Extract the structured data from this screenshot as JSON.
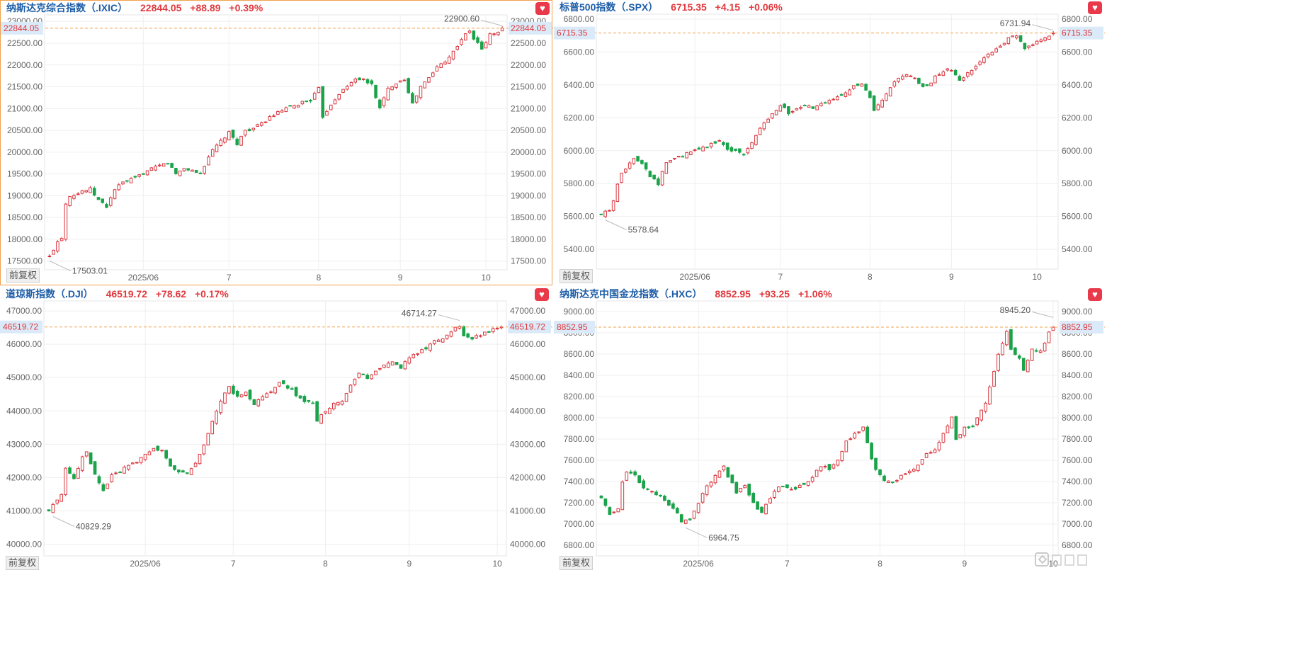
{
  "chart_data": [
    {
      "type": "candlestick",
      "title": "纳斯达克综合指数（.IXIC）",
      "last": "22844.05",
      "change": "+88.89",
      "change_pct": "+0.39%",
      "max_label": "22900.60",
      "min_label": "17503.01",
      "price_tag": "22844.05",
      "adjust_label": "前复权",
      "x_ticks": [
        "2025/06",
        "7",
        "8",
        "9",
        "10"
      ],
      "x_tick_index": [
        23,
        44,
        66,
        86,
        107
      ],
      "y_ticks": [
        "17500.00",
        "18000.00",
        "18500.00",
        "19000.00",
        "19500.00",
        "20000.00",
        "20500.00",
        "21000.00",
        "21500.00",
        "22000.00",
        "22500.00",
        "23000.00"
      ],
      "y_tick_values": [
        17500,
        18000,
        18500,
        19000,
        19500,
        20000,
        20500,
        21000,
        21500,
        22000,
        22500,
        23000
      ],
      "ylim": [
        17300,
        23150
      ],
      "max_value": 22900.6,
      "min_value": 17503.01,
      "last_value": 22844.05,
      "anchors": [
        [
          0,
          17600
        ],
        [
          2,
          17950
        ],
        [
          3,
          18050
        ],
        [
          4,
          18820
        ],
        [
          5,
          19010
        ],
        [
          7,
          19050
        ],
        [
          8,
          19110
        ],
        [
          10,
          19150
        ],
        [
          12,
          18900
        ],
        [
          14,
          18750
        ],
        [
          16,
          19150
        ],
        [
          18,
          19300
        ],
        [
          21,
          19400
        ],
        [
          23,
          19520
        ],
        [
          26,
          19650
        ],
        [
          29,
          19760
        ],
        [
          31,
          19500
        ],
        [
          33,
          19630
        ],
        [
          35,
          19580
        ],
        [
          37,
          19500
        ],
        [
          39,
          19900
        ],
        [
          41,
          20150
        ],
        [
          44,
          20440
        ],
        [
          46,
          20200
        ],
        [
          48,
          20500
        ],
        [
          50,
          20550
        ],
        [
          52,
          20650
        ],
        [
          54,
          20800
        ],
        [
          56,
          20900
        ],
        [
          58,
          21000
        ],
        [
          60,
          21050
        ],
        [
          62,
          21150
        ],
        [
          64,
          21200
        ],
        [
          66,
          21450
        ],
        [
          67,
          20820
        ],
        [
          69,
          21100
        ],
        [
          71,
          21350
        ],
        [
          73,
          21500
        ],
        [
          75,
          21700
        ],
        [
          77,
          21650
        ],
        [
          79,
          21550
        ],
        [
          81,
          21000
        ],
        [
          83,
          21450
        ],
        [
          85,
          21600
        ],
        [
          87,
          21680
        ],
        [
          89,
          21100
        ],
        [
          91,
          21500
        ],
        [
          93,
          21700
        ],
        [
          95,
          21950
        ],
        [
          97,
          22100
        ],
        [
          99,
          22300
        ],
        [
          101,
          22600
        ],
        [
          103,
          22780
        ],
        [
          104,
          22600
        ],
        [
          105,
          22500
        ],
        [
          106,
          22350
        ],
        [
          108,
          22700
        ],
        [
          110,
          22750
        ],
        [
          111,
          22844.05
        ]
      ]
    },
    {
      "type": "candlestick",
      "title": "标普500指数（.SPX）",
      "last": "6715.35",
      "change": "+4.15",
      "change_pct": "+0.06%",
      "max_label": "6731.94",
      "min_label": "5578.64",
      "price_tag": "6715.35",
      "adjust_label": "前复权",
      "x_ticks": [
        "2025/06",
        "7",
        "8",
        "9",
        "10"
      ],
      "x_tick_index": [
        23,
        44,
        66,
        86,
        107
      ],
      "y_ticks": [
        "5400.00",
        "5600.00",
        "5800.00",
        "6000.00",
        "6200.00",
        "6400.00",
        "6600.00",
        "6800.00"
      ],
      "y_tick_values": [
        5400,
        5600,
        5800,
        6000,
        6200,
        6400,
        6600,
        6800
      ],
      "ylim": [
        5280,
        6830
      ],
      "max_value": 6731.94,
      "min_value": 5578.64,
      "last_value": 6715.35,
      "anchors": [
        [
          0,
          5610
        ],
        [
          2,
          5640
        ],
        [
          3,
          5690
        ],
        [
          4,
          5800
        ],
        [
          5,
          5870
        ],
        [
          7,
          5920
        ],
        [
          8,
          5950
        ],
        [
          10,
          5930
        ],
        [
          12,
          5850
        ],
        [
          14,
          5800
        ],
        [
          16,
          5930
        ],
        [
          18,
          5950
        ],
        [
          21,
          5980
        ],
        [
          23,
          6000
        ],
        [
          26,
          6030
        ],
        [
          29,
          6060
        ],
        [
          31,
          6010
        ],
        [
          33,
          6000
        ],
        [
          35,
          5980
        ],
        [
          37,
          6050
        ],
        [
          39,
          6130
        ],
        [
          41,
          6200
        ],
        [
          44,
          6280
        ],
        [
          46,
          6230
        ],
        [
          48,
          6250
        ],
        [
          50,
          6270
        ],
        [
          52,
          6260
        ],
        [
          54,
          6280
        ],
        [
          56,
          6300
        ],
        [
          58,
          6330
        ],
        [
          60,
          6360
        ],
        [
          62,
          6390
        ],
        [
          64,
          6400
        ],
        [
          66,
          6320
        ],
        [
          67,
          6240
        ],
        [
          69,
          6300
        ],
        [
          71,
          6380
        ],
        [
          73,
          6440
        ],
        [
          75,
          6460
        ],
        [
          77,
          6440
        ],
        [
          79,
          6380
        ],
        [
          81,
          6420
        ],
        [
          83,
          6470
        ],
        [
          85,
          6500
        ],
        [
          87,
          6460
        ],
        [
          88,
          6420
        ],
        [
          90,
          6470
        ],
        [
          92,
          6520
        ],
        [
          94,
          6560
        ],
        [
          96,
          6600
        ],
        [
          98,
          6640
        ],
        [
          100,
          6680
        ],
        [
          102,
          6700
        ],
        [
          103,
          6660
        ],
        [
          104,
          6620
        ],
        [
          106,
          6640
        ],
        [
          108,
          6680
        ],
        [
          110,
          6700
        ],
        [
          111,
          6715.35
        ]
      ]
    },
    {
      "type": "candlestick",
      "title": "道琼斯指数（.DJI）",
      "last": "46519.72",
      "change": "+78.62",
      "change_pct": "+0.17%",
      "max_label": "46714.27",
      "min_label": "40829.29",
      "price_tag": "46519.72",
      "adjust_label": "前复权",
      "x_ticks": [
        "2025/06",
        "7",
        "8",
        "9",
        "10"
      ],
      "x_tick_index": [
        23,
        44,
        66,
        86,
        107
      ],
      "y_ticks": [
        "40000.00",
        "41000.00",
        "42000.00",
        "43000.00",
        "44000.00",
        "45000.00",
        "46000.00",
        "47000.00"
      ],
      "y_tick_values": [
        40000,
        41000,
        42000,
        43000,
        44000,
        45000,
        46000,
        47000
      ],
      "ylim": [
        39650,
        47300
      ],
      "max_value": 46714.27,
      "min_value": 40829.29,
      "last_value": 46519.72,
      "anchors": [
        [
          0,
          41000
        ],
        [
          2,
          41350
        ],
        [
          3,
          41500
        ],
        [
          4,
          42300
        ],
        [
          6,
          42000
        ],
        [
          8,
          42600
        ],
        [
          9,
          42800
        ],
        [
          11,
          42100
        ],
        [
          13,
          41600
        ],
        [
          15,
          42100
        ],
        [
          17,
          42200
        ],
        [
          19,
          42400
        ],
        [
          21,
          42500
        ],
        [
          23,
          42700
        ],
        [
          25,
          42900
        ],
        [
          27,
          42800
        ],
        [
          29,
          42300
        ],
        [
          31,
          42200
        ],
        [
          33,
          42100
        ],
        [
          35,
          42400
        ],
        [
          37,
          43000
        ],
        [
          39,
          43700
        ],
        [
          41,
          44300
        ],
        [
          43,
          44700
        ],
        [
          45,
          44400
        ],
        [
          47,
          44600
        ],
        [
          49,
          44200
        ],
        [
          51,
          44400
        ],
        [
          53,
          44600
        ],
        [
          55,
          44900
        ],
        [
          57,
          44700
        ],
        [
          59,
          44500
        ],
        [
          61,
          44300
        ],
        [
          63,
          44200
        ],
        [
          64,
          43700
        ],
        [
          66,
          44000
        ],
        [
          68,
          44200
        ],
        [
          70,
          44300
        ],
        [
          72,
          44800
        ],
        [
          74,
          45100
        ],
        [
          76,
          45000
        ],
        [
          78,
          45200
        ],
        [
          80,
          45400
        ],
        [
          82,
          45500
        ],
        [
          84,
          45300
        ],
        [
          86,
          45600
        ],
        [
          88,
          45700
        ],
        [
          90,
          45900
        ],
        [
          92,
          46100
        ],
        [
          94,
          46200
        ],
        [
          96,
          46400
        ],
        [
          98,
          46550
        ],
        [
          99,
          46250
        ],
        [
          101,
          46150
        ],
        [
          103,
          46300
        ],
        [
          105,
          46400
        ],
        [
          107,
          46500
        ],
        [
          108,
          46519.72
        ]
      ]
    },
    {
      "type": "candlestick",
      "title": "纳斯达克中国金龙指数（.HXC）",
      "last": "8852.95",
      "change": "+93.25",
      "change_pct": "+1.06%",
      "max_label": "8945.20",
      "min_label": "6964.75",
      "price_tag": "8852.95",
      "adjust_label": "前复权",
      "x_ticks": [
        "2025/06",
        "7",
        "8",
        "9",
        "10"
      ],
      "x_tick_index": [
        23,
        44,
        66,
        86,
        107
      ],
      "y_ticks": [
        "6800.00",
        "7000.00",
        "7200.00",
        "7400.00",
        "7600.00",
        "7800.00",
        "8000.00",
        "8200.00",
        "8400.00",
        "8600.00",
        "8800.00",
        "9000.00"
      ],
      "y_tick_values": [
        6800,
        7000,
        7200,
        7400,
        7600,
        7800,
        8000,
        8200,
        8400,
        8600,
        8800,
        9000
      ],
      "ylim": [
        6700,
        9100
      ],
      "max_value": 8945.2,
      "min_value": 6964.75,
      "last_value": 8852.95,
      "anchors": [
        [
          0,
          7250
        ],
        [
          2,
          7100
        ],
        [
          4,
          7150
        ],
        [
          5,
          7400
        ],
        [
          6,
          7500
        ],
        [
          8,
          7450
        ],
        [
          10,
          7350
        ],
        [
          12,
          7300
        ],
        [
          14,
          7250
        ],
        [
          16,
          7180
        ],
        [
          18,
          7100
        ],
        [
          19,
          7020
        ],
        [
          21,
          7050
        ],
        [
          23,
          7200
        ],
        [
          25,
          7350
        ],
        [
          27,
          7450
        ],
        [
          29,
          7550
        ],
        [
          30,
          7450
        ],
        [
          32,
          7300
        ],
        [
          34,
          7350
        ],
        [
          36,
          7200
        ],
        [
          38,
          7100
        ],
        [
          40,
          7250
        ],
        [
          42,
          7350
        ],
        [
          44,
          7350
        ],
        [
          46,
          7330
        ],
        [
          48,
          7380
        ],
        [
          50,
          7450
        ],
        [
          52,
          7550
        ],
        [
          54,
          7520
        ],
        [
          56,
          7600
        ],
        [
          58,
          7780
        ],
        [
          60,
          7850
        ],
        [
          62,
          7900
        ],
        [
          63,
          7750
        ],
        [
          65,
          7500
        ],
        [
          67,
          7400
        ],
        [
          69,
          7400
        ],
        [
          71,
          7450
        ],
        [
          73,
          7500
        ],
        [
          75,
          7560
        ],
        [
          77,
          7650
        ],
        [
          79,
          7700
        ],
        [
          81,
          7850
        ],
        [
          83,
          8000
        ],
        [
          84,
          7800
        ],
        [
          86,
          7900
        ],
        [
          88,
          7920
        ],
        [
          89,
          8000
        ],
        [
          91,
          8150
        ],
        [
          93,
          8450
        ],
        [
          94,
          8600
        ],
        [
          96,
          8800
        ],
        [
          97,
          8650
        ],
        [
          99,
          8550
        ],
        [
          100,
          8450
        ],
        [
          102,
          8650
        ],
        [
          104,
          8620
        ],
        [
          106,
          8800
        ],
        [
          107,
          8852.95
        ]
      ]
    }
  ]
}
